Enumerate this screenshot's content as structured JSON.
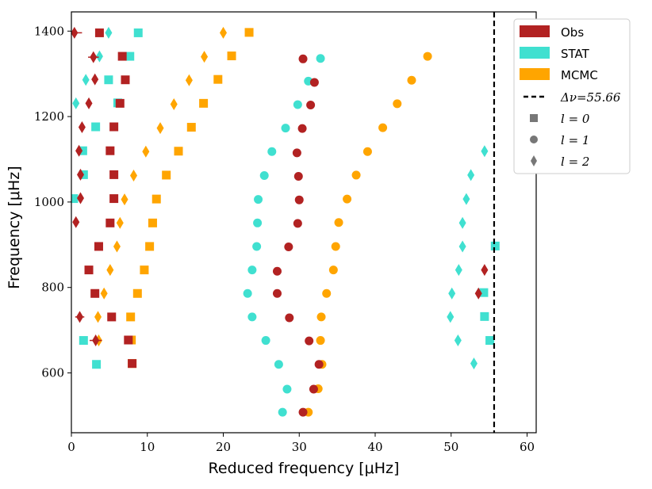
{
  "chart_data": {
    "type": "scatter",
    "title": "",
    "xlabel": "Reduced frequency [μHz]",
    "ylabel": "Frequency [μHz]",
    "xlim": [
      0,
      61.2
    ],
    "ylim": [
      460,
      1445
    ],
    "xticks": [
      0,
      10,
      20,
      30,
      40,
      50,
      60
    ],
    "yticks": [
      600,
      800,
      1000,
      1200,
      1400
    ],
    "grid": false,
    "legend_position": "top-right",
    "delta_nu": 55.66,
    "legend": {
      "obs": "Obs",
      "stat": "STAT",
      "mcmc": "MCMC",
      "dnu": "Δν=55.66",
      "l0": "l = 0",
      "l1": "l = 1",
      "l2": "l = 2"
    },
    "colors": {
      "obs": "#b22222",
      "stat": "#40e0d0",
      "mcmc": "#ffa500",
      "dnu": "#000000"
    },
    "series": [
      {
        "name": "Obs",
        "l": 0,
        "marker": "square",
        "points": [
          [
            8.0,
            622
          ],
          [
            7.5,
            677
          ],
          [
            5.3,
            731
          ],
          [
            3.1,
            786
          ],
          [
            2.3,
            841
          ],
          [
            3.6,
            896
          ],
          [
            5.1,
            951
          ],
          [
            5.6,
            1008
          ],
          [
            5.6,
            1064
          ],
          [
            5.1,
            1120
          ],
          [
            5.6,
            1176
          ],
          [
            6.4,
            1231
          ],
          [
            7.1,
            1286
          ],
          [
            6.7,
            1341
          ],
          [
            3.7,
            1396
          ]
        ]
      },
      {
        "name": "Obs",
        "l": 1,
        "marker": "circle",
        "points": [
          [
            30.5,
            508
          ],
          [
            31.9,
            562
          ],
          [
            32.6,
            620
          ],
          [
            31.3,
            675
          ],
          [
            28.7,
            729
          ],
          [
            27.1,
            786
          ],
          [
            27.1,
            838
          ],
          [
            28.6,
            895
          ],
          [
            29.8,
            950
          ],
          [
            30.0,
            1005
          ],
          [
            29.9,
            1060
          ],
          [
            29.7,
            1115
          ],
          [
            30.4,
            1172
          ],
          [
            31.5,
            1227
          ],
          [
            32.0,
            1280
          ],
          [
            30.5,
            1335
          ]
        ]
      },
      {
        "name": "Obs",
        "l": 2,
        "marker": "diamond",
        "points": [
          [
            3.2,
            676
          ],
          [
            1.1,
            731
          ],
          [
            53.6,
            786
          ],
          [
            54.4,
            841
          ],
          [
            0.6,
            953
          ],
          [
            1.2,
            1009
          ],
          [
            1.2,
            1064
          ],
          [
            1.0,
            1120
          ],
          [
            1.4,
            1175
          ],
          [
            2.3,
            1231
          ],
          [
            3.1,
            1287
          ],
          [
            2.9,
            1339
          ],
          [
            0.4,
            1396
          ]
        ],
        "errors": [
          0.8,
          0.6,
          0.4,
          0.4,
          0.4,
          0.4,
          0.4,
          0.4,
          0.4,
          0.4,
          0.4,
          0.7,
          1.0
        ]
      },
      {
        "name": "STAT",
        "l": 0,
        "marker": "square",
        "points": [
          [
            3.3,
            620
          ],
          [
            1.6,
            676
          ],
          [
            54.4,
            732
          ],
          [
            54.3,
            788
          ],
          [
            55.1,
            676
          ],
          [
            55.8,
            897
          ],
          [
            0.3,
            1008
          ],
          [
            1.6,
            1064
          ],
          [
            1.5,
            1120
          ],
          [
            3.2,
            1176
          ],
          [
            6.1,
            1232
          ],
          [
            4.9,
            1286
          ],
          [
            7.7,
            1341
          ],
          [
            8.8,
            1396
          ]
        ]
      },
      {
        "name": "STAT",
        "l": 1,
        "marker": "circle",
        "points": [
          [
            27.8,
            508
          ],
          [
            28.4,
            562
          ],
          [
            27.3,
            620
          ],
          [
            25.6,
            676
          ],
          [
            23.8,
            731
          ],
          [
            23.2,
            786
          ],
          [
            23.8,
            841
          ],
          [
            24.4,
            896
          ],
          [
            24.5,
            951
          ],
          [
            24.6,
            1006
          ],
          [
            25.4,
            1062
          ],
          [
            26.4,
            1118
          ],
          [
            28.2,
            1173
          ],
          [
            29.8,
            1228
          ],
          [
            31.2,
            1283
          ],
          [
            32.8,
            1336
          ]
        ]
      },
      {
        "name": "STAT",
        "l": 2,
        "marker": "diamond",
        "points": [
          [
            53.0,
            622
          ],
          [
            50.9,
            676
          ],
          [
            49.9,
            731
          ],
          [
            50.1,
            786
          ],
          [
            51.0,
            841
          ],
          [
            51.5,
            896
          ],
          [
            51.5,
            951
          ],
          [
            52.0,
            1007
          ],
          [
            52.6,
            1063
          ],
          [
            54.4,
            1119
          ],
          [
            0.6,
            1231
          ],
          [
            1.9,
            1286
          ],
          [
            3.7,
            1341
          ],
          [
            4.9,
            1396
          ]
        ]
      },
      {
        "name": "MCMC",
        "l": 0,
        "marker": "square",
        "points": [
          [
            8.0,
            622
          ],
          [
            7.9,
            677
          ],
          [
            7.8,
            731
          ],
          [
            8.7,
            786
          ],
          [
            9.6,
            841
          ],
          [
            10.3,
            896
          ],
          [
            10.7,
            951
          ],
          [
            11.2,
            1007
          ],
          [
            12.5,
            1063
          ],
          [
            14.1,
            1119
          ],
          [
            15.8,
            1175
          ],
          [
            17.4,
            1231
          ],
          [
            19.3,
            1287
          ],
          [
            21.1,
            1342
          ],
          [
            23.4,
            1397
          ]
        ]
      },
      {
        "name": "MCMC",
        "l": 1,
        "marker": "circle",
        "points": [
          [
            31.2,
            508
          ],
          [
            32.5,
            563
          ],
          [
            33.0,
            620
          ],
          [
            32.8,
            676
          ],
          [
            32.9,
            731
          ],
          [
            33.6,
            786
          ],
          [
            34.5,
            841
          ],
          [
            34.8,
            896
          ],
          [
            35.2,
            952
          ],
          [
            36.3,
            1007
          ],
          [
            37.5,
            1063
          ],
          [
            39.0,
            1118
          ],
          [
            41.0,
            1174
          ],
          [
            42.9,
            1230
          ],
          [
            44.8,
            1285
          ],
          [
            46.9,
            1341
          ]
        ]
      },
      {
        "name": "MCMC",
        "l": 2,
        "marker": "diamond",
        "points": [
          [
            3.6,
            676
          ],
          [
            3.5,
            731
          ],
          [
            4.3,
            786
          ],
          [
            5.1,
            841
          ],
          [
            6.0,
            896
          ],
          [
            6.4,
            951
          ],
          [
            7.0,
            1006
          ],
          [
            8.2,
            1062
          ],
          [
            9.8,
            1118
          ],
          [
            11.7,
            1173
          ],
          [
            13.5,
            1229
          ],
          [
            15.5,
            1285
          ],
          [
            17.5,
            1340
          ],
          [
            20.0,
            1396
          ]
        ]
      }
    ]
  }
}
